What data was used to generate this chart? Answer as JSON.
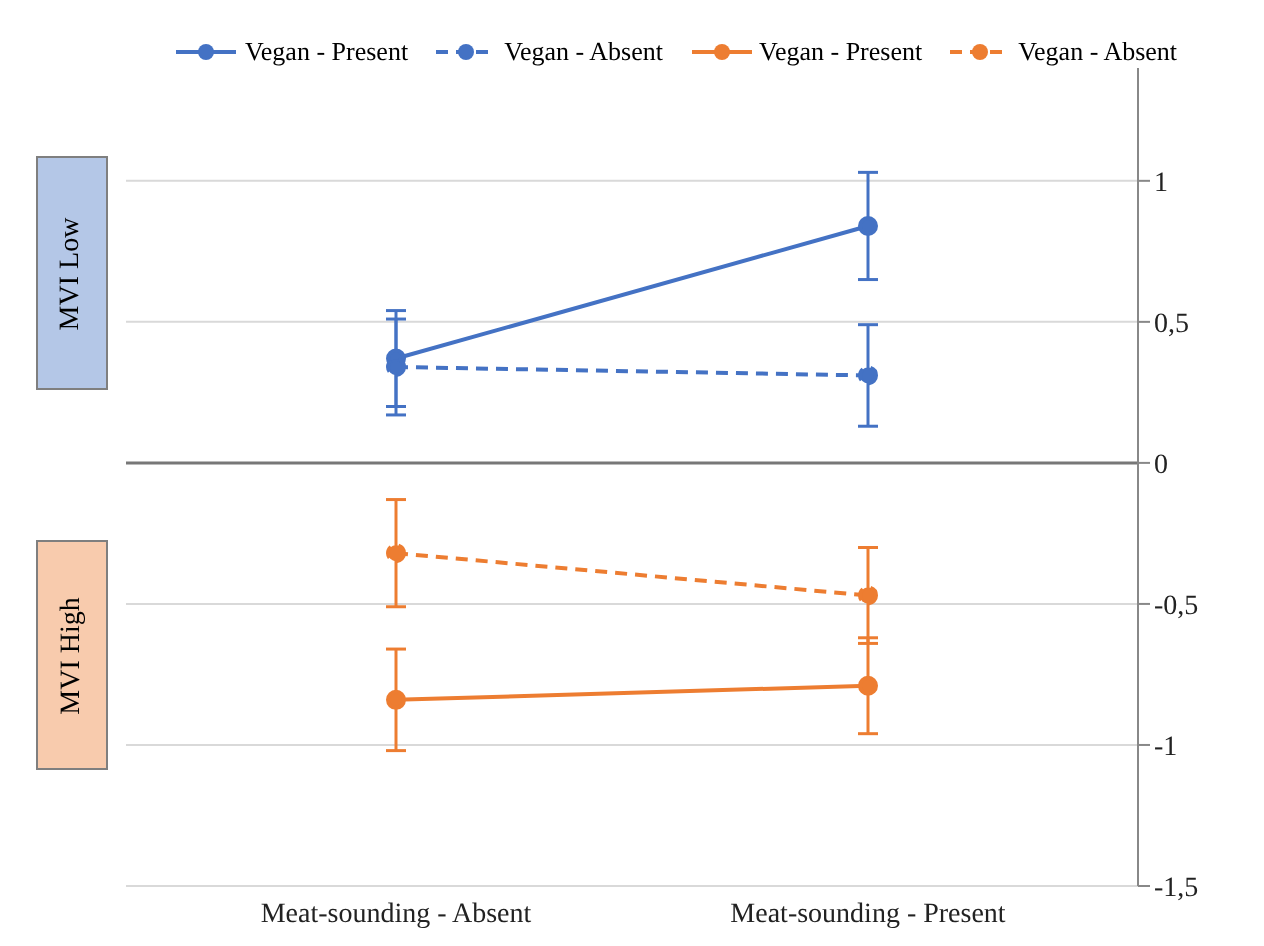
{
  "chart_data": {
    "type": "line",
    "categories": [
      "Meat-sounding - Absent",
      "Meat-sounding - Present"
    ],
    "series": [
      {
        "name": "Vegan - Present",
        "color": "#4472c4",
        "values": [
          0.37,
          0.84
        ],
        "errors": [
          0.17,
          0.19
        ],
        "line_style": "solid"
      },
      {
        "name": "Vegan - Absent",
        "color": "#4472c4",
        "values": [
          0.34,
          0.31
        ],
        "errors": [
          0.17,
          0.18
        ],
        "line_style": "dashed"
      },
      {
        "name": "Vegan - Present",
        "color": "#ed7d31",
        "values": [
          -0.84,
          -0.79
        ],
        "errors": [
          0.18,
          0.17
        ],
        "line_style": "solid"
      },
      {
        "name": "Vegan - Absent",
        "color": "#ed7d31",
        "values": [
          -0.32,
          -0.47
        ],
        "errors": [
          0.19,
          0.17
        ],
        "line_style": "dashed"
      }
    ],
    "ylim": [
      -1.5,
      1.4
    ],
    "yticks": [
      {
        "value": -1.5,
        "label": "-1,5"
      },
      -1,
      {
        "value": -0.5,
        "label": "-0,5"
      },
      0,
      {
        "value": 0.5,
        "label": "0,5"
      },
      1
    ],
    "grid": "y",
    "legend": "top",
    "marker": "circle",
    "annotations": [
      "MVI Low",
      "MVI High"
    ]
  }
}
